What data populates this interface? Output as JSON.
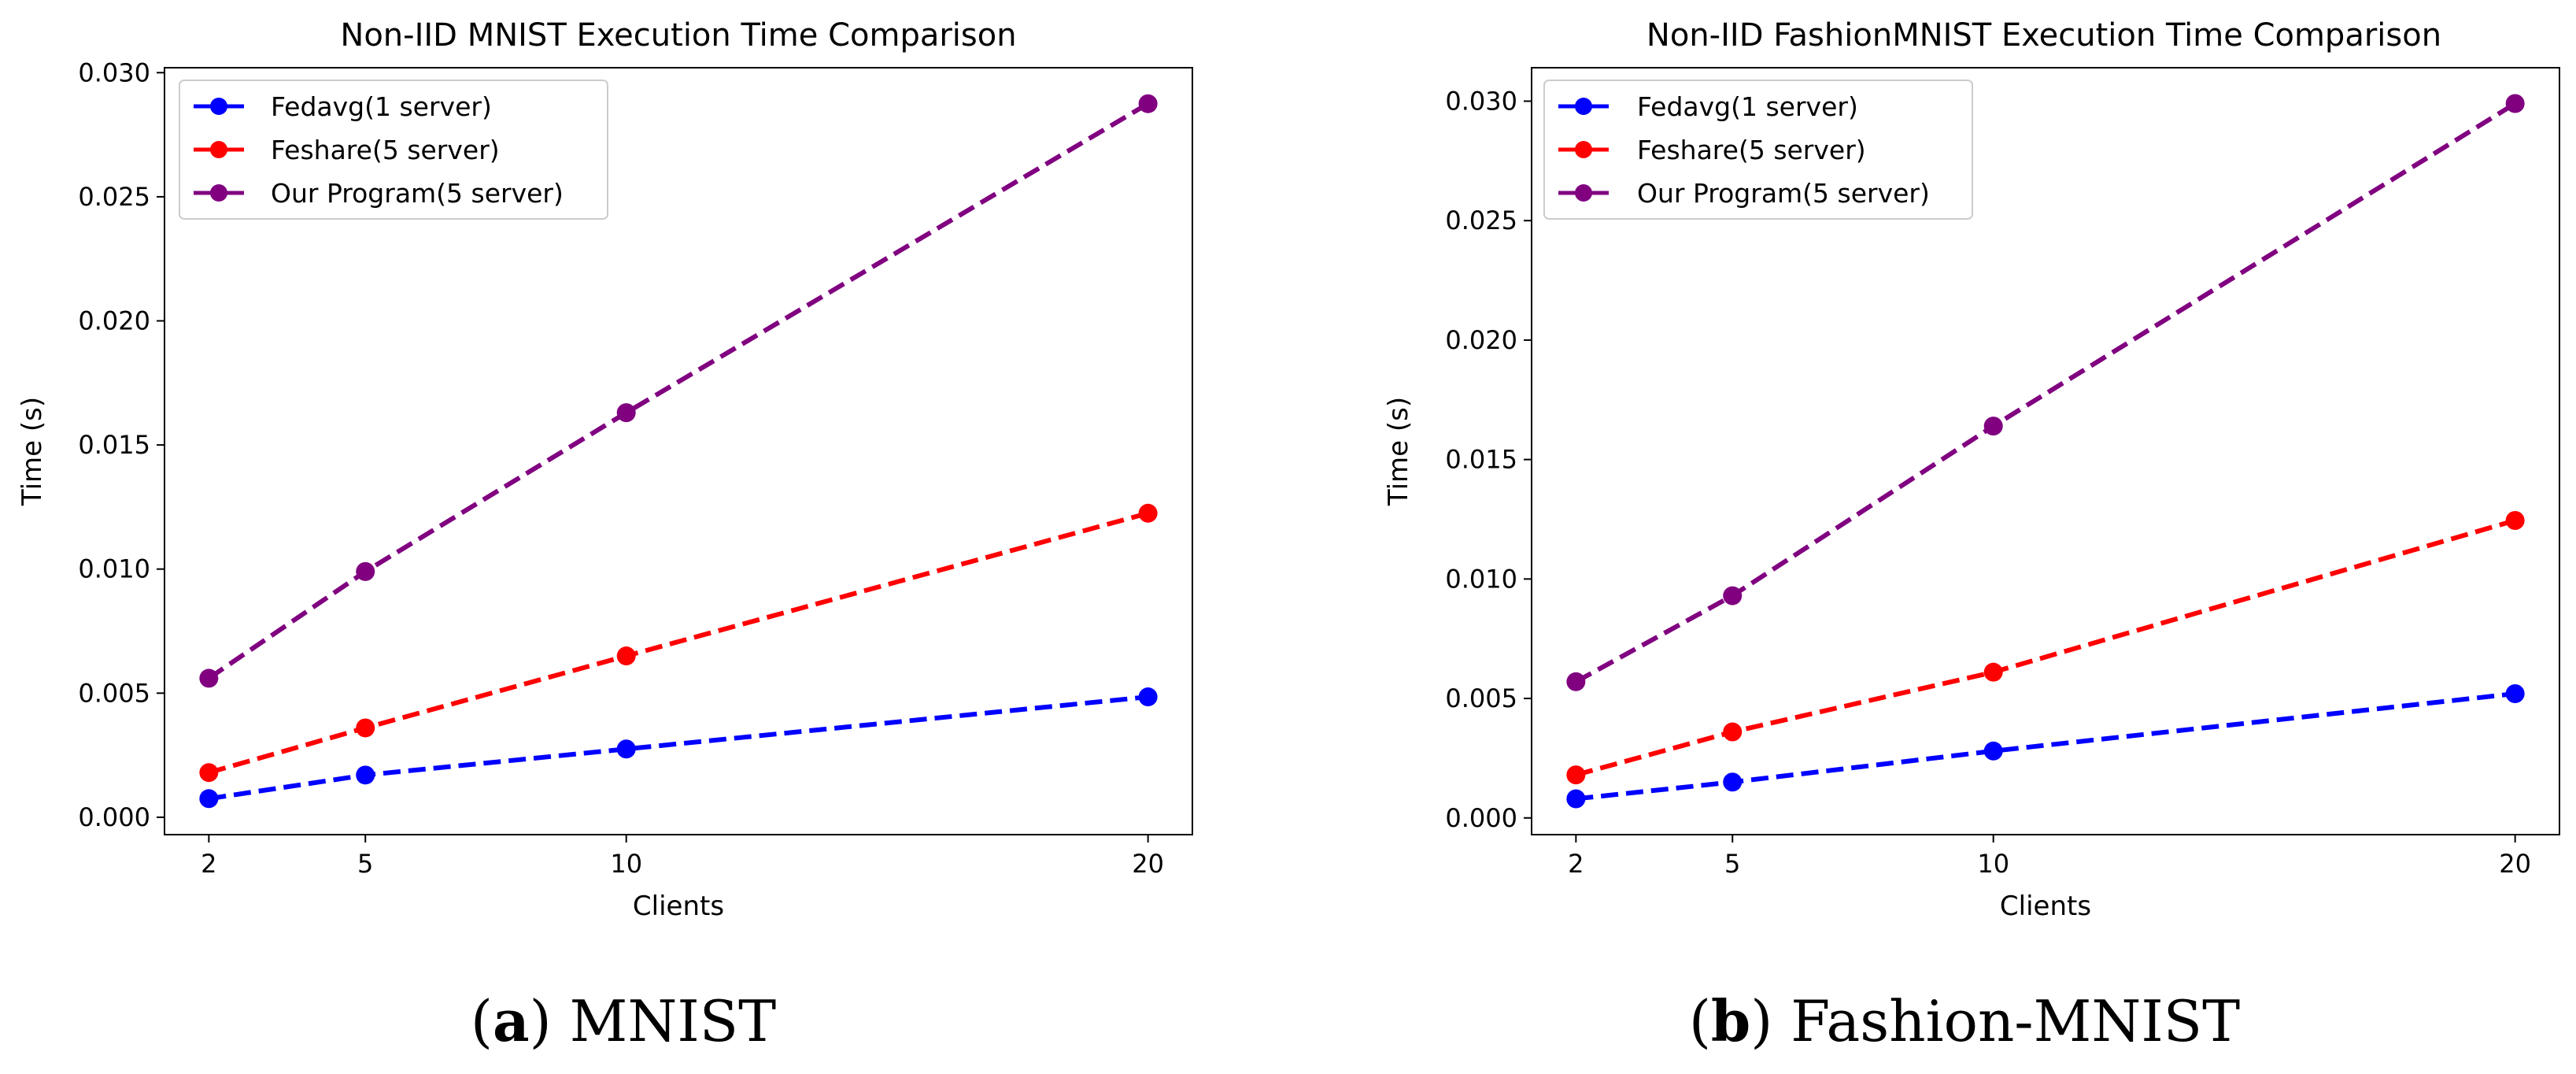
{
  "chart_data": [
    {
      "type": "line",
      "title": "Non-IID MNIST Execution Time Comparison",
      "xlabel": "Clients",
      "ylabel": "Time (s)",
      "x": [
        2,
        5,
        10,
        20
      ],
      "xticks": [
        "2",
        "5",
        "10",
        "20"
      ],
      "xlim": [
        1.15,
        20.85
      ],
      "ylim": [
        -0.0007,
        0.0302
      ],
      "yticks": [
        "0.000",
        "0.005",
        "0.010",
        "0.015",
        "0.020",
        "0.025",
        "0.030"
      ],
      "legend": "top-left",
      "series": [
        {
          "name": "Fedavg(1 server)",
          "color": "#0000ff",
          "values": [
            0.00075,
            0.0017,
            0.00275,
            0.00485
          ]
        },
        {
          "name": "Feshare(5 server)",
          "color": "#ff0000",
          "values": [
            0.0018,
            0.0036,
            0.0065,
            0.01225
          ]
        },
        {
          "name": "Our Program(5 server)",
          "color": "#800080",
          "values": [
            0.0056,
            0.0099,
            0.0163,
            0.02875
          ]
        }
      ],
      "caption_letter": "a",
      "caption_text": " MNIST"
    },
    {
      "type": "line",
      "title": "Non-IID FashionMNIST Execution Time Comparison",
      "xlabel": "Clients",
      "ylabel": "Time (s)",
      "x": [
        2,
        5,
        10,
        20
      ],
      "xticks": [
        "2",
        "5",
        "10",
        "20"
      ],
      "xlim": [
        1.15,
        20.85
      ],
      "ylim": [
        -0.0007,
        0.0314
      ],
      "yticks": [
        "0.000",
        "0.005",
        "0.010",
        "0.015",
        "0.020",
        "0.025",
        "0.030"
      ],
      "legend": "top-left",
      "series": [
        {
          "name": "Fedavg(1 server)",
          "color": "#0000ff",
          "values": [
            0.0008,
            0.0015,
            0.0028,
            0.0052
          ]
        },
        {
          "name": "Feshare(5 server)",
          "color": "#ff0000",
          "values": [
            0.0018,
            0.0036,
            0.0061,
            0.01245
          ]
        },
        {
          "name": "Our Program(5 server)",
          "color": "#800080",
          "values": [
            0.0057,
            0.0093,
            0.0164,
            0.0299
          ]
        }
      ],
      "caption_letter": "b",
      "caption_text": " Fashion-MNIST"
    }
  ]
}
